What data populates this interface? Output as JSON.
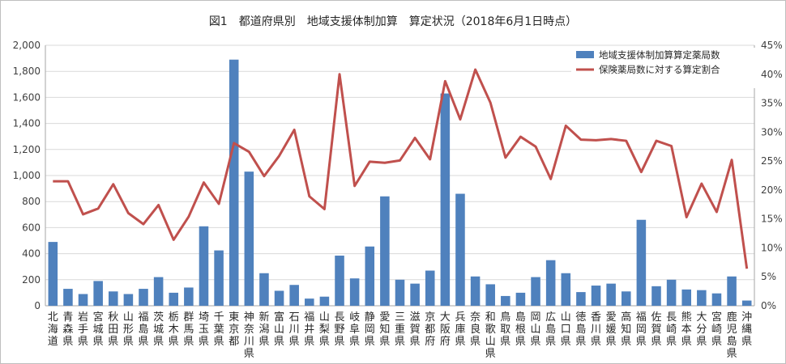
{
  "chart_data": {
    "type": "bar+line",
    "title": "図1　都道府県別　地域支援体制加算　算定状況（2018年6月1日時点）",
    "legend_placement": "top-right",
    "grid": true,
    "y_left": {
      "min": 0,
      "max": 2000,
      "step": 200,
      "ticks": [
        "0",
        "200",
        "400",
        "600",
        "800",
        "1,000",
        "1,200",
        "1,400",
        "1,600",
        "1,800",
        "2,000"
      ]
    },
    "y_right": {
      "min": 0,
      "max": 45,
      "step": 5,
      "ticks": [
        "0%",
        "5%",
        "10%",
        "15%",
        "20%",
        "25%",
        "30%",
        "35%",
        "40%",
        "45%"
      ]
    },
    "categories": [
      "北海道",
      "青森県",
      "岩手県",
      "宮城県",
      "秋田県",
      "山形県",
      "福島県",
      "茨城県",
      "栃木県",
      "群馬県",
      "埼玉県",
      "千葉県",
      "東京都",
      "神奈川県",
      "新潟県",
      "富山県",
      "石川県",
      "福井県",
      "山梨県",
      "長野県",
      "岐阜県",
      "静岡県",
      "愛知県",
      "三重県",
      "滋賀県",
      "京都府",
      "大阪府",
      "兵庫県",
      "奈良県",
      "和歌山県",
      "鳥取県",
      "島根県",
      "岡山県",
      "広島県",
      "山口県",
      "徳島県",
      "香川県",
      "愛媛県",
      "高知県",
      "福岡県",
      "佐賀県",
      "長崎県",
      "熊本県",
      "大分県",
      "宮崎県",
      "鹿児島県",
      "沖縄県"
    ],
    "series": [
      {
        "name": "地域支援体制加算算定薬局数",
        "type": "bar",
        "axis": "left",
        "color": "#4f81bd",
        "values": [
          490,
          130,
          90,
          190,
          110,
          90,
          130,
          220,
          100,
          140,
          610,
          425,
          1890,
          1030,
          250,
          115,
          160,
          55,
          70,
          385,
          210,
          455,
          840,
          200,
          170,
          270,
          1630,
          860,
          225,
          165,
          75,
          100,
          220,
          350,
          250,
          105,
          155,
          170,
          110,
          660,
          150,
          200,
          125,
          120,
          95,
          225,
          40
        ]
      },
      {
        "name": "保険薬局数に対する算定割合",
        "type": "line",
        "axis": "right",
        "color": "#c0504d",
        "values": [
          21.5,
          21.5,
          15.8,
          16.8,
          21.0,
          16.0,
          14.1,
          17.4,
          11.4,
          15.4,
          21.3,
          17.6,
          28.1,
          26.6,
          22.4,
          25.9,
          30.4,
          18.9,
          16.7,
          40.0,
          20.7,
          24.9,
          24.7,
          25.1,
          29.0,
          25.3,
          38.8,
          32.2,
          40.8,
          35.1,
          25.6,
          29.2,
          27.5,
          21.9,
          31.1,
          28.7,
          28.6,
          28.8,
          28.5,
          23.1,
          28.5,
          27.6,
          15.3,
          21.1,
          16.2,
          25.2,
          6.4
        ]
      }
    ]
  }
}
